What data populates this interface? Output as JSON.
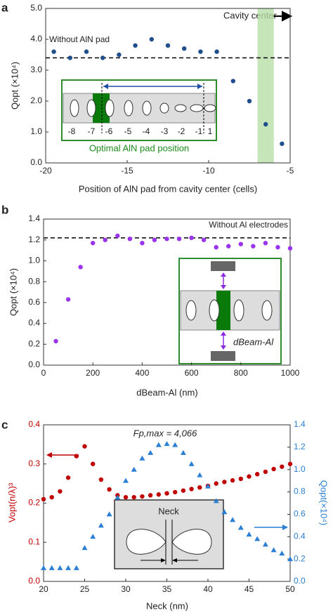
{
  "chart_data": [
    {
      "type": "scatter",
      "panel_label": "a",
      "xlabel": "Position of AlN pad from cavity center (cells)",
      "ylabel": "Qopt (×10⁴)",
      "x": [
        -19.5,
        -18.5,
        -17.5,
        -16.5,
        -15.5,
        -14.5,
        -13.5,
        -12.5,
        -11.5,
        -10.5,
        -9.5,
        -8.5,
        -7.5,
        -6.5,
        -5.5
      ],
      "series": [
        {
          "color": "#1f4e8c",
          "marker": "circle",
          "values": [
            3.6,
            3.4,
            3.6,
            3.4,
            3.5,
            3.8,
            4.0,
            3.8,
            3.7,
            3.6,
            3.6,
            2.65,
            2.0,
            1.25,
            0.62
          ]
        }
      ],
      "xlim": [
        -20,
        -5
      ],
      "xticks": [
        -20,
        -15,
        -10,
        -5
      ],
      "ylim": [
        0,
        5
      ],
      "yticks": [
        {
          "value": 0,
          "label": "0.0"
        },
        {
          "value": 1,
          "label": "1.0"
        },
        {
          "value": 2,
          "label": "2.0"
        },
        {
          "value": 3,
          "label": "3.0"
        },
        {
          "value": 4,
          "label": "4.0"
        },
        {
          "value": 5,
          "label": "5.0"
        }
      ],
      "reference_line": 3.4,
      "highlight_x": [
        -7,
        -6
      ],
      "annotations": [
        "Without AlN pad",
        "Cavity center",
        "Optimal AlN pad position"
      ],
      "inset_labels": [
        "-8",
        "-7",
        "-6",
        "-5",
        "-4",
        "-3",
        "-2",
        "-1",
        "1"
      ]
    },
    {
      "type": "scatter",
      "panel_label": "b",
      "xlabel": "dBeam-Al (nm)",
      "ylabel": "Qopt (×10⁴)",
      "x": [
        50,
        100,
        150,
        200,
        250,
        300,
        350,
        400,
        450,
        500,
        550,
        600,
        650,
        700,
        750,
        800,
        850,
        900,
        950,
        1000
      ],
      "series": [
        {
          "color": "#9933ee",
          "marker": "circle",
          "values": [
            0.23,
            0.63,
            0.94,
            1.17,
            1.2,
            1.24,
            1.21,
            1.17,
            1.2,
            1.21,
            1.21,
            1.22,
            1.2,
            1.13,
            1.14,
            1.16,
            1.14,
            1.17,
            1.13,
            1.12
          ]
        }
      ],
      "xlim": [
        0,
        1000
      ],
      "xticks": [
        0,
        200,
        400,
        600,
        800,
        1000
      ],
      "ylim": [
        0,
        1.4
      ],
      "yticks": [
        {
          "value": 0,
          "label": "0.0"
        },
        {
          "value": 0.2,
          "label": "0.2"
        },
        {
          "value": 0.4,
          "label": "0.4"
        },
        {
          "value": 0.6,
          "label": "0.6"
        },
        {
          "value": 0.8,
          "label": "0.8"
        },
        {
          "value": 1,
          "label": "1.0"
        },
        {
          "value": 1.2,
          "label": "1.2"
        },
        {
          "value": 1.4,
          "label": "1.4"
        }
      ],
      "reference_line": 1.22,
      "annotations": [
        "Without Al electrodes",
        "dBeam-Al"
      ]
    },
    {
      "type": "scatter",
      "panel_label": "c",
      "xlabel": "Neck (nm)",
      "ylabel": "Vopt(n/λ)³",
      "y2label": "Qopt(×10⁴)",
      "y_color": "#c00000",
      "y2_color": "#2a7fd4",
      "x": [
        20,
        21,
        22,
        23,
        24,
        25,
        26,
        27,
        28,
        29,
        30,
        31,
        32,
        33,
        34,
        35,
        36,
        37,
        38,
        39,
        40,
        41,
        42,
        43,
        44,
        45,
        46,
        47,
        48,
        49,
        50
      ],
      "series": [
        {
          "color": "#c00000",
          "marker": "circle",
          "values": [
            0.21,
            0.215,
            0.23,
            0.265,
            0.32,
            0.345,
            0.3,
            0.26,
            0.235,
            0.22,
            0.215,
            0.215,
            0.217,
            0.22,
            0.222,
            0.225,
            0.228,
            0.232,
            0.236,
            0.24,
            0.244,
            0.25,
            0.254,
            0.258,
            0.262,
            0.268,
            0.274,
            0.28,
            0.287,
            0.293,
            0.3
          ]
        },
        {
          "color": "#2a7fd4",
          "marker": "triangle",
          "axis": "y2",
          "values": [
            0.12,
            0.12,
            0.12,
            0.12,
            0.12,
            0.3,
            0.4,
            0.5,
            0.6,
            0.75,
            0.9,
            1.0,
            1.1,
            1.15,
            1.22,
            1.23,
            1.22,
            1.15,
            1.05,
            0.95,
            0.85,
            0.72,
            0.62,
            0.55,
            0.48,
            0.42,
            0.38,
            0.33,
            0.28,
            0.25,
            0.2
          ]
        }
      ],
      "xlim": [
        20,
        50
      ],
      "xticks": [
        20,
        25,
        30,
        35,
        40,
        45,
        50
      ],
      "ylim": [
        0,
        0.4
      ],
      "yticks": [
        {
          "value": 0,
          "label": "0.0"
        },
        {
          "value": 0.1,
          "label": "0.1"
        },
        {
          "value": 0.2,
          "label": "0.2"
        },
        {
          "value": 0.3,
          "label": "0.3"
        },
        {
          "value": 0.4,
          "label": "0.4"
        }
      ],
      "y2lim": [
        0,
        1.4
      ],
      "y2ticks": [
        {
          "value": 0,
          "label": "0.0"
        },
        {
          "value": 0.2,
          "label": "0.2"
        },
        {
          "value": 0.4,
          "label": "0.4"
        },
        {
          "value": 0.6,
          "label": "0.6"
        },
        {
          "value": 0.8,
          "label": "0.8"
        },
        {
          "value": 1,
          "label": "1.0"
        },
        {
          "value": 1.2,
          "label": "1.2"
        },
        {
          "value": 1.4,
          "label": "1.4"
        }
      ],
      "annotations": [
        "Fp,max = 4,066",
        "Neck"
      ]
    }
  ]
}
